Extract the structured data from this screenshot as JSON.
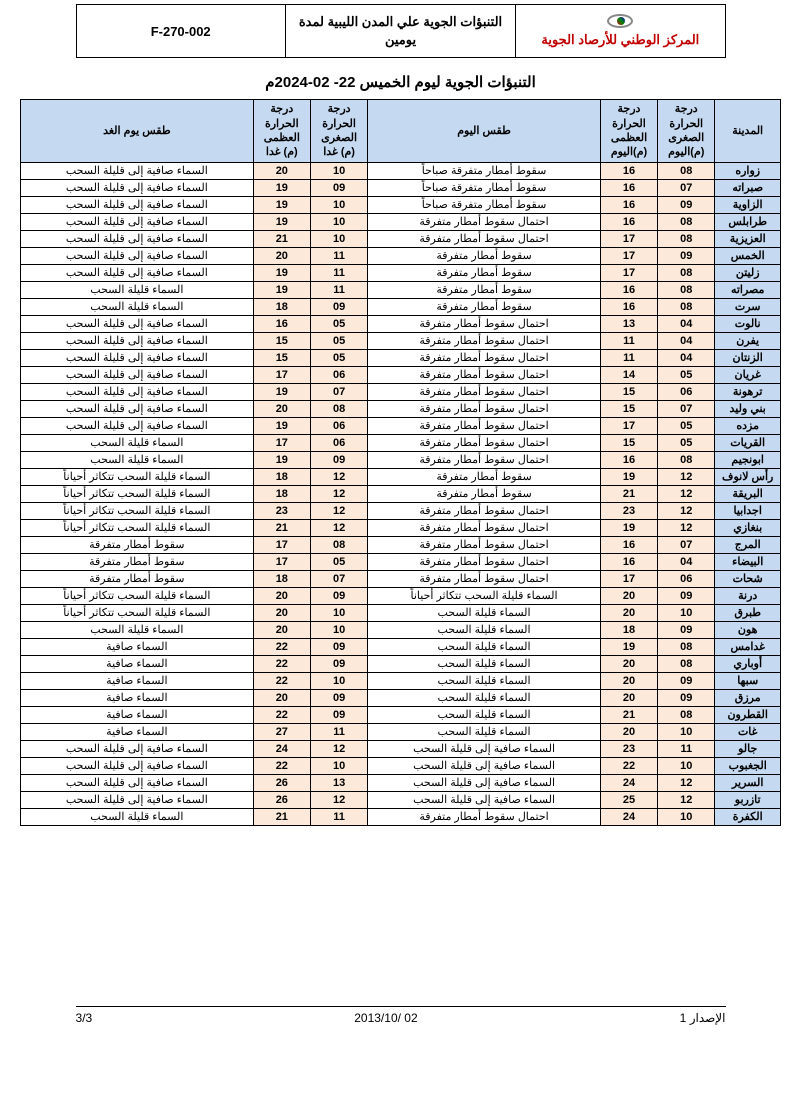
{
  "header": {
    "org_name": "المركز الوطني للأرصاد الجوية",
    "doc_title": "التنبؤات الجوية علي المدن الليبية لمدة يومين",
    "doc_code": "F-270-002"
  },
  "main_title": "التنبؤات الجوية ليوم الخميس  22- 02-2024م",
  "columns": {
    "city": "المدينة",
    "min_today": "درجة الحرارة الصغرى (م)اليوم",
    "max_today": "درجة الحرارة العظمى (م)اليوم",
    "weather_today": "طقس اليوم",
    "min_tomorrow": "درجة الحرارة الصغرى (م) غدا",
    "max_tomorrow": "درجة الحرارة العظمى (م) غدا",
    "weather_tomorrow": "طقس يوم الغد"
  },
  "rows": [
    {
      "city": "زواره",
      "min_t": "08",
      "max_t": "16",
      "w_t": "سقوط أمطار متفرقة صباحاً",
      "min_m": "10",
      "max_m": "20",
      "w_m": "السماء صافية إلى قليلة السحب"
    },
    {
      "city": "صبراته",
      "min_t": "07",
      "max_t": "16",
      "w_t": "سقوط أمطار متفرقة صباحاً",
      "min_m": "09",
      "max_m": "19",
      "w_m": "السماء صافية إلى قليلة السحب"
    },
    {
      "city": "الزاوية",
      "min_t": "09",
      "max_t": "16",
      "w_t": "سقوط أمطار متفرقة صباحاً",
      "min_m": "10",
      "max_m": "19",
      "w_m": "السماء صافية إلى قليلة السحب"
    },
    {
      "city": "طرابلس",
      "min_t": "08",
      "max_t": "16",
      "w_t": "احتمال سقوط أمطار متفرقة",
      "min_m": "10",
      "max_m": "19",
      "w_m": "السماء صافية إلى قليلة السحب"
    },
    {
      "city": "العزيزية",
      "min_t": "08",
      "max_t": "17",
      "w_t": "احتمال سقوط أمطار متفرقة",
      "min_m": "10",
      "max_m": "21",
      "w_m": "السماء صافية إلى قليلة السحب"
    },
    {
      "city": "الخمس",
      "min_t": "09",
      "max_t": "17",
      "w_t": "سقوط أمطار متفرقة",
      "min_m": "11",
      "max_m": "20",
      "w_m": "السماء صافية إلى قليلة السحب"
    },
    {
      "city": "زليتن",
      "min_t": "08",
      "max_t": "17",
      "w_t": "سقوط أمطار متفرقة",
      "min_m": "11",
      "max_m": "19",
      "w_m": "السماء صافية إلى قليلة السحب"
    },
    {
      "city": "مصراته",
      "min_t": "08",
      "max_t": "16",
      "w_t": "سقوط أمطار متفرقة",
      "min_m": "11",
      "max_m": "19",
      "w_m": "السماء قليلة السحب"
    },
    {
      "city": "سرت",
      "min_t": "08",
      "max_t": "16",
      "w_t": "سقوط أمطار متفرقة",
      "min_m": "09",
      "max_m": "18",
      "w_m": "السماء قليلة السحب"
    },
    {
      "city": "نالوت",
      "min_t": "04",
      "max_t": "13",
      "w_t": "احتمال سقوط أمطار متفرقة",
      "min_m": "05",
      "max_m": "16",
      "w_m": "السماء صافية إلى قليلة السحب"
    },
    {
      "city": "يفرن",
      "min_t": "04",
      "max_t": "11",
      "w_t": "احتمال سقوط أمطار متفرقة",
      "min_m": "05",
      "max_m": "15",
      "w_m": "السماء صافية إلى قليلة السحب"
    },
    {
      "city": "الزنتان",
      "min_t": "04",
      "max_t": "11",
      "w_t": "احتمال سقوط أمطار متفرقة",
      "min_m": "05",
      "max_m": "15",
      "w_m": "السماء صافية إلى قليلة السحب"
    },
    {
      "city": "غريان",
      "min_t": "05",
      "max_t": "14",
      "w_t": "احتمال سقوط أمطار متفرقة",
      "min_m": "06",
      "max_m": "17",
      "w_m": "السماء صافية إلى قليلة السحب"
    },
    {
      "city": "ترهونة",
      "min_t": "06",
      "max_t": "15",
      "w_t": "احتمال سقوط أمطار متفرقة",
      "min_m": "07",
      "max_m": "19",
      "w_m": "السماء صافية إلى قليلة السحب"
    },
    {
      "city": "بني وليد",
      "min_t": "07",
      "max_t": "15",
      "w_t": "احتمال سقوط أمطار متفرقة",
      "min_m": "08",
      "max_m": "20",
      "w_m": "السماء صافية إلى قليلة السحب"
    },
    {
      "city": "مزده",
      "min_t": "05",
      "max_t": "17",
      "w_t": "احتمال سقوط أمطار متفرقة",
      "min_m": "06",
      "max_m": "19",
      "w_m": "السماء صافية إلى قليلة السحب"
    },
    {
      "city": "القريات",
      "min_t": "05",
      "max_t": "15",
      "w_t": "احتمال سقوط أمطار متفرقة",
      "min_m": "06",
      "max_m": "17",
      "w_m": "السماء قليلة السحب"
    },
    {
      "city": "ابونجيم",
      "min_t": "08",
      "max_t": "16",
      "w_t": "احتمال سقوط أمطار متفرقة",
      "min_m": "09",
      "max_m": "19",
      "w_m": "السماء قليلة السحب"
    },
    {
      "city": "رأس لانوف",
      "min_t": "12",
      "max_t": "19",
      "w_t": "سقوط أمطار متفرقة",
      "min_m": "12",
      "max_m": "18",
      "w_m": "السماء قليلة السحب تتكاثر أحياناً"
    },
    {
      "city": "البريقة",
      "min_t": "12",
      "max_t": "21",
      "w_t": "سقوط أمطار متفرقة",
      "min_m": "12",
      "max_m": "18",
      "w_m": "السماء قليلة السحب تتكاثر أحياناً"
    },
    {
      "city": "اجدابيا",
      "min_t": "12",
      "max_t": "23",
      "w_t": "احتمال سقوط أمطار متفرقة",
      "min_m": "12",
      "max_m": "23",
      "w_m": "السماء قليلة السحب تتكاثر أحياناً"
    },
    {
      "city": "بنغازي",
      "min_t": "12",
      "max_t": "19",
      "w_t": "احتمال سقوط أمطار متفرقة",
      "min_m": "12",
      "max_m": "21",
      "w_m": "السماء قليلة السحب تتكاثر أحياناً"
    },
    {
      "city": "المرج",
      "min_t": "07",
      "max_t": "16",
      "w_t": "احتمال سقوط أمطار متفرقة",
      "min_m": "08",
      "max_m": "17",
      "w_m": "سقوط أمطار متفرقة"
    },
    {
      "city": "البيضاء",
      "min_t": "04",
      "max_t": "16",
      "w_t": "احتمال سقوط أمطار متفرقة",
      "min_m": "05",
      "max_m": "17",
      "w_m": "سقوط أمطار متفرقة"
    },
    {
      "city": "شحات",
      "min_t": "06",
      "max_t": "17",
      "w_t": "احتمال سقوط أمطار متفرقة",
      "min_m": "07",
      "max_m": "18",
      "w_m": "سقوط أمطار متفرقة"
    },
    {
      "city": "درنة",
      "min_t": "09",
      "max_t": "20",
      "w_t": "السماء قليلة السحب تتكاثر أحياناً",
      "min_m": "09",
      "max_m": "20",
      "w_m": "السماء قليلة السحب تتكاثر أحياناً"
    },
    {
      "city": "طبرق",
      "min_t": "10",
      "max_t": "20",
      "w_t": "السماء قليلة السحب",
      "min_m": "10",
      "max_m": "20",
      "w_m": "السماء قليلة السحب تتكاثر أحياناً"
    },
    {
      "city": "هون",
      "min_t": "09",
      "max_t": "18",
      "w_t": "السماء قليلة السحب",
      "min_m": "10",
      "max_m": "20",
      "w_m": "السماء قليلة السحب"
    },
    {
      "city": "غدامس",
      "min_t": "08",
      "max_t": "19",
      "w_t": "السماء قليلة السحب",
      "min_m": "09",
      "max_m": "22",
      "w_m": "السماء صافية"
    },
    {
      "city": "أوباري",
      "min_t": "08",
      "max_t": "20",
      "w_t": "السماء قليلة السحب",
      "min_m": "09",
      "max_m": "22",
      "w_m": "السماء صافية"
    },
    {
      "city": "سبها",
      "min_t": "09",
      "max_t": "20",
      "w_t": "السماء قليلة السحب",
      "min_m": "10",
      "max_m": "22",
      "w_m": "السماء صافية"
    },
    {
      "city": "مرزق",
      "min_t": "09",
      "max_t": "20",
      "w_t": "السماء قليلة السحب",
      "min_m": "09",
      "max_m": "20",
      "w_m": "السماء صافية"
    },
    {
      "city": "القطرون",
      "min_t": "08",
      "max_t": "21",
      "w_t": "السماء قليلة السحب",
      "min_m": "09",
      "max_m": "22",
      "w_m": "السماء صافية"
    },
    {
      "city": "غات",
      "min_t": "10",
      "max_t": "20",
      "w_t": "السماء قليلة السحب",
      "min_m": "11",
      "max_m": "27",
      "w_m": "السماء صافية"
    },
    {
      "city": "جالو",
      "min_t": "11",
      "max_t": "23",
      "w_t": "السماء صافية إلى قليلة السحب",
      "min_m": "12",
      "max_m": "24",
      "w_m": "السماء صافية إلى قليلة السحب"
    },
    {
      "city": "الجغبوب",
      "min_t": "10",
      "max_t": "22",
      "w_t": "السماء صافية إلى قليلة السحب",
      "min_m": "10",
      "max_m": "22",
      "w_m": "السماء صافية إلى قليلة السحب"
    },
    {
      "city": "السرير",
      "min_t": "12",
      "max_t": "24",
      "w_t": "السماء صافية إلى قليلة السحب",
      "min_m": "13",
      "max_m": "26",
      "w_m": "السماء صافية إلى قليلة السحب"
    },
    {
      "city": "تازربو",
      "min_t": "12",
      "max_t": "25",
      "w_t": "السماء صافية إلى قليلة السحب",
      "min_m": "12",
      "max_m": "26",
      "w_m": "السماء صافية إلى قليلة السحب"
    },
    {
      "city": "الكفرة",
      "min_t": "10",
      "max_t": "24",
      "w_t": "احتمال سقوط أمطار متفرقة",
      "min_m": "11",
      "max_m": "21",
      "w_m": "السماء  قليلة السحب"
    }
  ],
  "footer": {
    "version": "الإصدار 1",
    "date": "2013/10/ 02",
    "page": "3/3"
  }
}
